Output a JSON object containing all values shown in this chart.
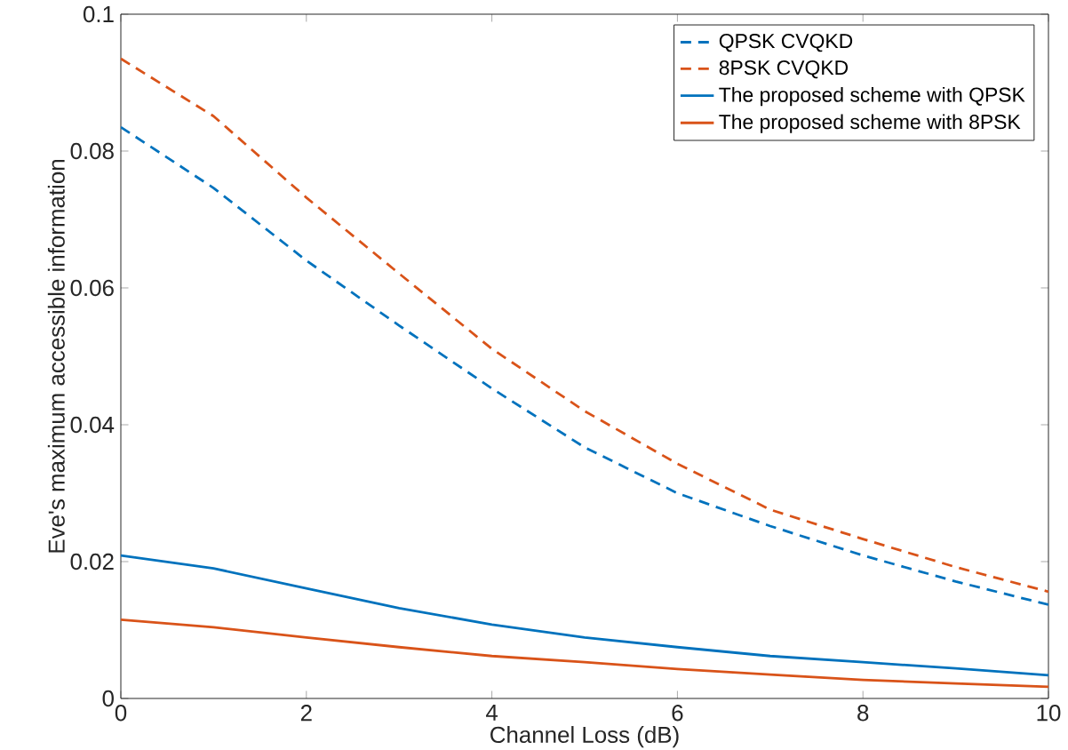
{
  "chart_data": {
    "type": "line",
    "xlabel": "Channel Loss (dB)",
    "ylabel": "Eve's maximum accessible information",
    "x": [
      0,
      1,
      2,
      3,
      4,
      5,
      6,
      7,
      8,
      9,
      10
    ],
    "series": [
      {
        "name": "QPSK CVQKD",
        "color": "#0072bd",
        "line_style": "dashed",
        "values": [
          0.0835,
          0.0746,
          0.064,
          0.0545,
          0.0453,
          0.0367,
          0.03,
          0.0252,
          0.0209,
          0.0171,
          0.0137
        ]
      },
      {
        "name": "8PSK CVQKD",
        "color": "#d95319",
        "line_style": "dashed",
        "values": [
          0.0935,
          0.0851,
          0.0732,
          0.0621,
          0.0511,
          0.042,
          0.0343,
          0.0276,
          0.0233,
          0.0192,
          0.0156
        ]
      },
      {
        "name": "The proposed scheme with QPSK",
        "color": "#0072bd",
        "line_style": "solid",
        "values": [
          0.0209,
          0.019,
          0.0161,
          0.0132,
          0.0108,
          0.0089,
          0.0075,
          0.0062,
          0.0053,
          0.0044,
          0.0034
        ]
      },
      {
        "name": "The proposed scheme with 8PSK",
        "color": "#d95319",
        "line_style": "solid",
        "values": [
          0.0115,
          0.0104,
          0.0089,
          0.0075,
          0.0062,
          0.0053,
          0.0043,
          0.0035,
          0.0027,
          0.0022,
          0.0017
        ]
      }
    ],
    "xlim": [
      0,
      10
    ],
    "ylim": [
      0,
      0.1
    ],
    "xticks": [
      0,
      2,
      4,
      6,
      8,
      10
    ],
    "yticks": [
      0,
      0.02,
      0.04,
      0.06,
      0.08,
      0.1
    ],
    "grid": false,
    "legend": "top right",
    "marker": "none"
  }
}
